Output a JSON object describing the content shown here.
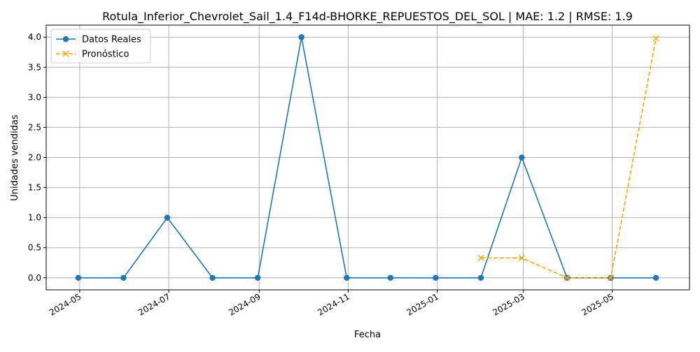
{
  "chart_data": {
    "type": "line",
    "title": "Rotula_Inferior_Chevrolet_Sail_1.4_F14d-BHORKE_REPUESTOS_DEL_SOL | MAE: 1.2 | RMSE: 1.9",
    "xlabel": "Fecha",
    "ylabel": "Unidades vendidas",
    "ylim": [
      -0.2,
      4.2
    ],
    "xlim": [
      "2024-04-08",
      "2025-06-23"
    ],
    "grid": true,
    "legend_position": "top-left",
    "x_ticks": [
      "2024-05",
      "2024-07",
      "2024-09",
      "2024-11",
      "2025-01",
      "2025-03",
      "2025-05"
    ],
    "y_ticks": [
      "0.0",
      "0.5",
      "1.0",
      "1.5",
      "2.0",
      "2.5",
      "3.0",
      "3.5",
      "4.0"
    ],
    "series": [
      {
        "name": "Datos Reales",
        "color": "#1f77b4",
        "style": "solid",
        "marker": "circle",
        "x": [
          "2024-04-30",
          "2024-05-31",
          "2024-06-30",
          "2024-07-31",
          "2024-08-31",
          "2024-09-30",
          "2024-10-31",
          "2024-11-30",
          "2024-12-31",
          "2025-01-31",
          "2025-02-28",
          "2025-03-31",
          "2025-04-30",
          "2025-05-31"
        ],
        "values": [
          0,
          0,
          1,
          0,
          0,
          4,
          0,
          0,
          0,
          0,
          2,
          0,
          0,
          0
        ]
      },
      {
        "name": "Pronóstico",
        "color": "#ffa500",
        "style": "dashed",
        "marker": "x",
        "x": [
          "2025-01-31",
          "2025-02-28",
          "2025-03-31",
          "2025-04-30",
          "2025-05-31"
        ],
        "values": [
          0.33,
          0.33,
          0,
          0,
          3.98
        ]
      }
    ]
  }
}
